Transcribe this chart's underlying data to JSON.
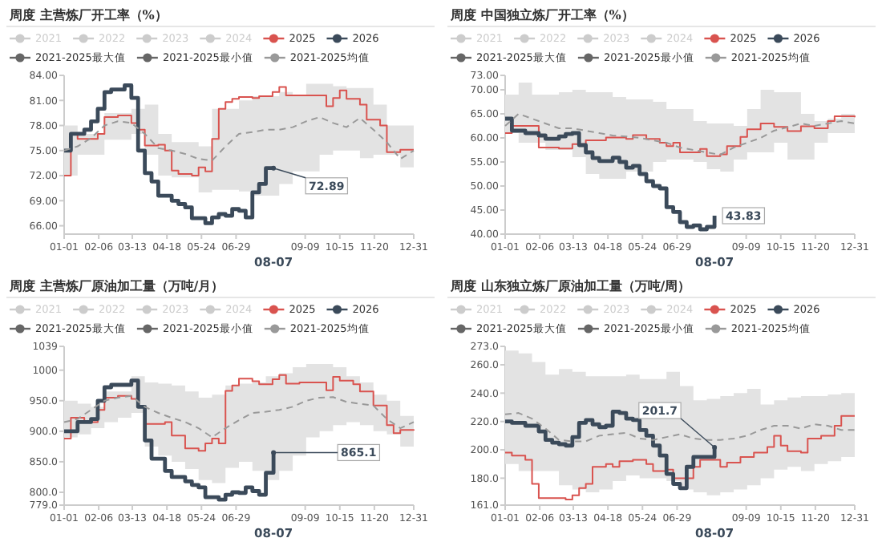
{
  "chart_data": [
    {
      "type": "step",
      "title": "周度 主营炼厂开工率（%）",
      "legend": "top",
      "xlim": [
        "--01-01",
        "--12-31"
      ],
      "ylim": [
        65,
        84
      ],
      "xticks": [
        {
          "value": "--01-01",
          "label": "01-01"
        },
        {
          "value": "--02-06",
          "label": "02-06"
        },
        {
          "value": "--03-13",
          "label": "03-13"
        },
        {
          "value": "--04-18",
          "label": "04-18"
        },
        {
          "value": "--05-24",
          "label": "05-24"
        },
        {
          "value": "--06-29",
          "label": "06-29"
        },
        {
          "value": "--09-09",
          "label": "09-09"
        },
        {
          "value": "--10-15",
          "label": "10-15"
        },
        {
          "value": "--11-20",
          "label": "11-20"
        },
        {
          "value": "--12-31",
          "label": "12-31"
        }
      ],
      "yticks": [
        {
          "value": 66,
          "label": "66.00"
        },
        {
          "value": 69,
          "label": "69.00"
        },
        {
          "value": 72,
          "label": "72.00"
        },
        {
          "value": 75,
          "label": "75.00"
        },
        {
          "value": 78,
          "label": "78.00"
        },
        {
          "value": 81,
          "label": "81.00"
        },
        {
          "value": 84,
          "label": "84.00"
        }
      ],
      "annotations": [
        {
          "text": "72.89",
          "x": "--08-07",
          "y": 72.89
        },
        "08-07"
      ],
      "series": [
        {
          "name": "2021",
          "color": "#cccccc"
        },
        {
          "name": "2022",
          "color": "#cccccc"
        },
        {
          "name": "2023",
          "color": "#cccccc"
        },
        {
          "name": "2024",
          "color": "#cccccc"
        },
        {
          "name": "2025",
          "color": "#d9534f",
          "x": [
            "--01-01",
            "--01-08",
            "--01-15",
            "--02-05",
            "--02-12",
            "--02-26",
            "--03-05",
            "--03-12",
            "--03-19",
            "--03-26",
            "--04-09",
            "--04-16",
            "--04-23",
            "--04-30",
            "--05-14",
            "--05-21",
            "--05-28",
            "--06-04",
            "--06-11",
            "--06-18",
            "--06-25",
            "--07-02",
            "--07-16",
            "--07-23",
            "--08-06",
            "--08-13",
            "--08-20",
            "--09-03",
            "--09-24",
            "--10-01",
            "--10-08",
            "--10-15",
            "--10-22",
            "--11-05",
            "--11-12",
            "--11-26",
            "--12-03",
            "--12-17",
            "--12-31"
          ],
          "values": [
            72,
            77,
            76.4,
            77,
            79,
            79.2,
            79.2,
            78.3,
            77.5,
            75.6,
            75.7,
            75,
            72.6,
            72.2,
            72,
            73,
            72.5,
            76.4,
            80,
            80.8,
            81.2,
            81.4,
            81.3,
            81.5,
            82,
            82.6,
            81.6,
            81.6,
            81.6,
            80.3,
            81.3,
            82.2,
            81.2,
            80.5,
            78.7,
            78,
            74.8,
            75.1,
            75.1
          ]
        },
        {
          "name": "2026",
          "color": "#3b4a5a",
          "x": [
            "--01-01",
            "--01-08",
            "--01-22",
            "--01-29",
            "--02-05",
            "--02-12",
            "--02-19",
            "--03-05",
            "--03-12",
            "--03-19",
            "--03-26",
            "--04-02",
            "--04-09",
            "--04-23",
            "--04-30",
            "--05-07",
            "--05-14",
            "--05-28",
            "--06-04",
            "--06-11",
            "--06-18",
            "--06-25",
            "--07-02",
            "--07-09",
            "--07-16",
            "--07-23",
            "--07-30",
            "--08-07"
          ],
          "values": [
            75,
            77,
            77.5,
            78.5,
            80,
            82,
            82.3,
            82.8,
            81.3,
            75,
            72.3,
            71.3,
            69.6,
            69,
            68.6,
            68.2,
            66.9,
            66.3,
            67,
            67.4,
            67.2,
            68,
            67.8,
            67,
            70,
            71,
            72.9,
            72.89
          ]
        },
        {
          "name": "2021-2025最大值",
          "color": "#666666"
        },
        {
          "name": "2021-2025最小值",
          "color": "#666666"
        },
        {
          "name": "2021-2025均值",
          "type": "line",
          "line_style": "dashed",
          "color": "#999999",
          "x": [
            "--01-01",
            "--01-15",
            "--01-29",
            "--02-12",
            "--02-26",
            "--03-12",
            "--03-26",
            "--04-09",
            "--04-23",
            "--05-07",
            "--05-21",
            "--06-04",
            "--06-18",
            "--07-02",
            "--07-16",
            "--07-30",
            "--08-13",
            "--08-27",
            "--09-10",
            "--09-24",
            "--10-08",
            "--10-22",
            "--11-05",
            "--11-19",
            "--12-03",
            "--12-17",
            "--12-31"
          ],
          "values": [
            75,
            75.5,
            76.5,
            78,
            78.5,
            78.3,
            77,
            75.3,
            75,
            74.6,
            74,
            73.8,
            75.5,
            77,
            77.2,
            77.5,
            77.5,
            77.8,
            78.5,
            79,
            78.3,
            77.8,
            78.9,
            77.5,
            76,
            74,
            75
          ],
          "upper": [
            78,
            77,
            77,
            79.5,
            79.5,
            80,
            80.5,
            77,
            76,
            76,
            75.5,
            80,
            80,
            81,
            81.5,
            81.5,
            82,
            81.5,
            83,
            83,
            82.7,
            82.5,
            82.5,
            80.5,
            78,
            78,
            78.2
          ],
          "lower": [
            72,
            74.5,
            74.5,
            76.3,
            76.3,
            77,
            74.5,
            72,
            71.8,
            71.8,
            70,
            70.3,
            70.3,
            70.1,
            69.6,
            69.6,
            71,
            72.5,
            72.5,
            74.5,
            75,
            75,
            74.1,
            74.5,
            74.5,
            73,
            72
          ]
        }
      ]
    },
    {
      "type": "step",
      "title": "周度 中国独立炼厂开工率（%）",
      "legend": "top",
      "xlim": [
        "--01-01",
        "--12-31"
      ],
      "ylim": [
        40,
        73
      ],
      "xticks": [
        {
          "value": "--01-01",
          "label": "01-01"
        },
        {
          "value": "--02-06",
          "label": "02-06"
        },
        {
          "value": "--03-13",
          "label": "03-13"
        },
        {
          "value": "--04-18",
          "label": "04-18"
        },
        {
          "value": "--05-24",
          "label": "05-24"
        },
        {
          "value": "--06-29",
          "label": "06-29"
        },
        {
          "value": "--09-09",
          "label": "09-09"
        },
        {
          "value": "--10-15",
          "label": "10-15"
        },
        {
          "value": "--11-20",
          "label": "11-20"
        },
        {
          "value": "--12-31",
          "label": "12-31"
        }
      ],
      "yticks": [
        {
          "value": 40,
          "label": "40.00"
        },
        {
          "value": 45,
          "label": "45.00"
        },
        {
          "value": 50,
          "label": "50.00"
        },
        {
          "value": 55,
          "label": "55.00"
        },
        {
          "value": 60,
          "label": "60.00"
        },
        {
          "value": 65,
          "label": "65.00"
        },
        {
          "value": 70,
          "label": "70.00"
        },
        {
          "value": 73,
          "label": "73.00"
        }
      ],
      "annotations": [
        {
          "text": "43.83",
          "x": "--08-07",
          "y": 43.83
        },
        "08-07"
      ],
      "series": [
        {
          "name": "2021",
          "color": "#cccccc"
        },
        {
          "name": "2022",
          "color": "#cccccc"
        },
        {
          "name": "2023",
          "color": "#cccccc"
        },
        {
          "name": "2024",
          "color": "#cccccc"
        },
        {
          "name": "2025",
          "color": "#d9534f",
          "x": [
            "--01-01",
            "--01-08",
            "--01-29",
            "--02-05",
            "--02-26",
            "--03-12",
            "--03-26",
            "--04-16",
            "--05-07",
            "--05-14",
            "--05-28",
            "--06-11",
            "--06-18",
            "--06-25",
            "--07-02",
            "--07-23",
            "--07-30",
            "--08-13",
            "--08-20",
            "--09-03",
            "--09-10",
            "--09-24",
            "--10-08",
            "--10-22",
            "--11-05",
            "--11-19",
            "--12-03",
            "--12-10",
            "--12-31"
          ],
          "values": [
            61,
            62.5,
            62.5,
            58,
            57.8,
            58.7,
            59.5,
            60.1,
            59.8,
            60.6,
            59.8,
            59,
            58.3,
            59,
            57,
            57.7,
            56.2,
            56.6,
            58.3,
            60.2,
            61.8,
            63,
            62.3,
            61.4,
            62.4,
            62,
            63.5,
            64.5,
            64.3
          ]
        },
        {
          "name": "2026",
          "color": "#3b4a5a",
          "x": [
            "--01-01",
            "--01-08",
            "--01-22",
            "--02-05",
            "--02-12",
            "--02-26",
            "--03-05",
            "--03-12",
            "--03-19",
            "--03-26",
            "--04-02",
            "--04-09",
            "--04-16",
            "--04-23",
            "--04-30",
            "--05-07",
            "--05-14",
            "--05-21",
            "--05-28",
            "--06-04",
            "--06-11",
            "--06-18",
            "--06-25",
            "--07-02",
            "--07-09",
            "--07-16",
            "--07-23",
            "--07-30",
            "--08-07"
          ],
          "values": [
            64,
            61.5,
            61,
            60.5,
            59.8,
            60.3,
            60.8,
            61,
            58.5,
            57,
            55.8,
            55.2,
            55.2,
            55.9,
            55,
            53.8,
            54.2,
            52.5,
            51,
            50,
            49.5,
            45.6,
            44.6,
            42.5,
            41.5,
            41.8,
            41,
            41.5,
            43.83
          ]
        },
        {
          "name": "2021-2025最大值",
          "color": "#666666"
        },
        {
          "name": "2021-2025最小值",
          "color": "#666666"
        },
        {
          "name": "2021-2025均值",
          "type": "line",
          "line_style": "dashed",
          "color": "#999999",
          "x": [
            "--01-01",
            "--01-15",
            "--01-29",
            "--02-12",
            "--02-26",
            "--03-12",
            "--03-26",
            "--04-09",
            "--04-23",
            "--05-07",
            "--05-21",
            "--06-04",
            "--06-18",
            "--07-02",
            "--07-16",
            "--07-30",
            "--08-13",
            "--08-27",
            "--09-10",
            "--09-24",
            "--10-08",
            "--10-22",
            "--11-05",
            "--11-19",
            "--12-03",
            "--12-17",
            "--12-31"
          ],
          "values": [
            62.5,
            65,
            64,
            63,
            62,
            62,
            61.5,
            61,
            60.5,
            60.3,
            60,
            59.5,
            59,
            58,
            57.5,
            57,
            56.5,
            58,
            59,
            60,
            61.5,
            62.2,
            63,
            62.5,
            63,
            63.5,
            63
          ],
          "upper": [
            69,
            71.5,
            69,
            69,
            69.5,
            70,
            69.5,
            69.5,
            68.5,
            68,
            68,
            67.5,
            66,
            66,
            63.5,
            63,
            63,
            62.5,
            66,
            70,
            69.5,
            69.5,
            65,
            63.5,
            64,
            65,
            64.5
          ],
          "lower": [
            61,
            59,
            59,
            57.5,
            57.5,
            56,
            52.5,
            51.5,
            51.5,
            53,
            53,
            55,
            55.5,
            55.5,
            55,
            53.5,
            53,
            55.5,
            57,
            57,
            59,
            55.5,
            55.5,
            59,
            61,
            61,
            60.5
          ]
        }
      ]
    },
    {
      "type": "step",
      "title": "周度 主营炼厂原油加工量（万吨/月）",
      "legend": "top",
      "xlim": [
        "--01-01",
        "--12-31"
      ],
      "ylim": [
        779,
        1039
      ],
      "xticks": [
        {
          "value": "--01-01",
          "label": "01-01"
        },
        {
          "value": "--02-06",
          "label": "02-06"
        },
        {
          "value": "--03-13",
          "label": "03-13"
        },
        {
          "value": "--04-18",
          "label": "04-18"
        },
        {
          "value": "--05-24",
          "label": "05-24"
        },
        {
          "value": "--06-29",
          "label": "06-29"
        },
        {
          "value": "--09-09",
          "label": "09-09"
        },
        {
          "value": "--10-15",
          "label": "10-15"
        },
        {
          "value": "--11-20",
          "label": "11-20"
        },
        {
          "value": "--12-31",
          "label": "12-31"
        }
      ],
      "yticks": [
        {
          "value": 779,
          "label": "779.0"
        },
        {
          "value": 800,
          "label": "800.0"
        },
        {
          "value": 850,
          "label": "850.0"
        },
        {
          "value": 900,
          "label": "900.0"
        },
        {
          "value": 950,
          "label": "950.0"
        },
        1000,
        1039
      ],
      "annotations": [
        {
          "text": "865.1",
          "x": "--08-07",
          "y": 865.1
        },
        "08-07"
      ],
      "series": [
        {
          "name": "2021",
          "color": "#cccccc"
        },
        {
          "name": "2022",
          "color": "#cccccc"
        },
        {
          "name": "2023",
          "color": "#cccccc"
        },
        {
          "name": "2024",
          "color": "#cccccc"
        },
        {
          "name": "2025",
          "color": "#d9534f",
          "x": [
            "--01-01",
            "--01-08",
            "--01-22",
            "--02-05",
            "--02-12",
            "--02-26",
            "--03-12",
            "--03-19",
            "--03-26",
            "--04-16",
            "--04-23",
            "--05-07",
            "--05-21",
            "--05-28",
            "--06-04",
            "--06-11",
            "--06-18",
            "--06-25",
            "--07-02",
            "--07-16",
            "--07-23",
            "--08-06",
            "--08-13",
            "--08-20",
            "--09-03",
            "--09-24",
            "--10-01",
            "--10-08",
            "--10-15",
            "--10-29",
            "--11-05",
            "--11-19",
            "--12-03",
            "--12-10",
            "--12-17",
            "--12-31"
          ],
          "values": [
            888,
            922,
            915,
            935,
            955,
            958,
            953,
            940,
            912,
            915,
            893,
            872,
            868,
            880,
            888,
            880,
            966,
            975,
            986,
            982,
            977,
            985,
            992,
            978,
            980,
            980,
            967,
            989,
            983,
            977,
            965,
            942,
            910,
            897,
            902,
            901
          ]
        },
        {
          "name": "2026",
          "color": "#3b4a5a",
          "x": [
            "--01-01",
            "--01-15",
            "--01-29",
            "--02-05",
            "--02-12",
            "--02-19",
            "--03-05",
            "--03-12",
            "--03-19",
            "--03-26",
            "--04-02",
            "--04-16",
            "--04-23",
            "--05-07",
            "--05-14",
            "--05-21",
            "--05-28",
            "--06-11",
            "--06-18",
            "--06-25",
            "--07-02",
            "--07-09",
            "--07-16",
            "--07-23",
            "--07-30",
            "--08-07"
          ],
          "values": [
            900,
            915,
            920,
            950,
            972,
            976,
            976,
            983,
            940,
            885,
            855,
            835,
            825,
            818,
            812,
            808,
            792,
            788,
            796,
            800,
            799,
            808,
            802,
            796,
            832,
            865.1
          ]
        },
        {
          "name": "2021-2025最大值",
          "color": "#666666"
        },
        {
          "name": "2021-2025最小值",
          "color": "#666666"
        },
        {
          "name": "2021-2025均值",
          "type": "line",
          "line_style": "dashed",
          "color": "#999999",
          "x": [
            "--01-01",
            "--01-15",
            "--01-29",
            "--02-12",
            "--02-26",
            "--03-12",
            "--03-26",
            "--04-09",
            "--04-23",
            "--05-07",
            "--05-21",
            "--06-04",
            "--06-18",
            "--07-02",
            "--07-16",
            "--07-30",
            "--08-13",
            "--08-27",
            "--09-10",
            "--09-24",
            "--10-08",
            "--10-22",
            "--11-05",
            "--11-19",
            "--12-03",
            "--12-17",
            "--12-31"
          ],
          "values": [
            915,
            920,
            935,
            950,
            955,
            958,
            940,
            930,
            922,
            915,
            905,
            890,
            905,
            918,
            930,
            932,
            935,
            940,
            950,
            955,
            956,
            948,
            945,
            942,
            920,
            905,
            915
          ],
          "upper": [
            950,
            945,
            940,
            965,
            965,
            990,
            980,
            978,
            975,
            965,
            955,
            960,
            975,
            978,
            980,
            990,
            995,
            1005,
            1010,
            1010,
            1005,
            990,
            980,
            960,
            950,
            925,
            945
          ],
          "lower": [
            890,
            895,
            905,
            915,
            922,
            930,
            875,
            860,
            850,
            838,
            820,
            815,
            840,
            850,
            835,
            820,
            835,
            860,
            890,
            900,
            910,
            915,
            910,
            900,
            895,
            875,
            885
          ]
        }
      ]
    },
    {
      "type": "step",
      "title": "周度 山东独立炼厂原油加工量（万吨/周）",
      "legend": "top",
      "xlim": [
        "--01-01",
        "--12-31"
      ],
      "ylim": [
        161,
        273
      ],
      "xticks": [
        {
          "value": "--01-01",
          "label": "01-01"
        },
        {
          "value": "--02-06",
          "label": "02-06"
        },
        {
          "value": "--03-13",
          "label": "03-13"
        },
        {
          "value": "--04-18",
          "label": "04-18"
        },
        {
          "value": "--05-24",
          "label": "05-24"
        },
        {
          "value": "--06-29",
          "label": "06-29"
        },
        {
          "value": "--09-09",
          "label": "09-09"
        },
        {
          "value": "--10-15",
          "label": "10-15"
        },
        {
          "value": "--11-20",
          "label": "11-20"
        },
        {
          "value": "--12-31",
          "label": "12-31"
        }
      ],
      "yticks": [
        {
          "value": 161,
          "label": "161.0"
        },
        {
          "value": 180,
          "label": "180.0"
        },
        {
          "value": 200,
          "label": "200.0"
        },
        {
          "value": 220,
          "label": "220.0"
        },
        {
          "value": 240,
          "label": "240.0"
        },
        {
          "value": 260,
          "label": "260.0"
        },
        {
          "value": 273,
          "label": "273.0"
        }
      ],
      "annotations": [
        {
          "text": "201.7",
          "x": "--08-07",
          "y": 201.7
        },
        "08-07"
      ],
      "series": [
        {
          "name": "2021",
          "color": "#cccccc"
        },
        {
          "name": "2022",
          "color": "#cccccc"
        },
        {
          "name": "2023",
          "color": "#cccccc"
        },
        {
          "name": "2024",
          "color": "#cccccc"
        },
        {
          "name": "2025",
          "color": "#d9534f",
          "x": [
            "--01-01",
            "--01-08",
            "--01-22",
            "--01-29",
            "--02-05",
            "--02-19",
            "--03-05",
            "--03-12",
            "--03-19",
            "--03-26",
            "--04-02",
            "--04-16",
            "--04-23",
            "--04-30",
            "--05-14",
            "--05-28",
            "--06-04",
            "--06-18",
            "--06-25",
            "--07-16",
            "--07-23",
            "--08-13",
            "--08-20",
            "--09-03",
            "--09-17",
            "--10-01",
            "--10-08",
            "--10-15",
            "--10-22",
            "--11-05",
            "--11-12",
            "--11-26",
            "--12-10",
            "--12-17",
            "--12-31"
          ],
          "values": [
            198,
            196,
            193,
            176,
            166,
            166,
            165,
            168,
            173,
            176,
            188,
            190,
            188,
            192,
            193,
            190,
            185,
            186,
            180,
            188,
            193,
            188,
            191,
            195,
            198,
            202,
            210,
            203,
            199,
            198,
            208,
            210,
            217,
            224,
            224
          ]
        },
        {
          "name": "2026",
          "color": "#3b4a5a",
          "x": [
            "--01-01",
            "--01-08",
            "--01-22",
            "--02-05",
            "--02-12",
            "--02-19",
            "--02-26",
            "--03-05",
            "--03-12",
            "--03-19",
            "--03-26",
            "--04-02",
            "--04-09",
            "--04-16",
            "--04-23",
            "--04-30",
            "--05-07",
            "--05-14",
            "--05-21",
            "--05-28",
            "--06-04",
            "--06-11",
            "--06-18",
            "--06-25",
            "--07-02",
            "--07-09",
            "--07-16",
            "--07-30",
            "--08-07"
          ],
          "values": [
            220,
            219,
            217,
            213,
            207,
            205,
            204,
            203,
            209,
            219,
            221,
            218,
            216,
            217,
            227,
            226,
            222,
            221,
            214,
            210,
            203,
            196,
            183,
            176,
            173,
            188,
            195,
            195,
            201.7
          ]
        },
        {
          "name": "2021-2025最大值",
          "color": "#666666"
        },
        {
          "name": "2021-2025最小值",
          "color": "#666666"
        },
        {
          "name": "2021-2025均值",
          "type": "line",
          "line_style": "dashed",
          "color": "#999999",
          "x": [
            "--01-01",
            "--01-15",
            "--01-29",
            "--02-12",
            "--02-26",
            "--03-12",
            "--03-26",
            "--04-09",
            "--04-23",
            "--05-07",
            "--05-21",
            "--06-04",
            "--06-18",
            "--07-02",
            "--07-16",
            "--07-30",
            "--08-13",
            "--08-27",
            "--09-10",
            "--09-24",
            "--10-08",
            "--10-22",
            "--11-05",
            "--11-19",
            "--12-03",
            "--12-17",
            "--12-31"
          ],
          "values": [
            225,
            226,
            222,
            215,
            207,
            206,
            206,
            210,
            211,
            212,
            208,
            207,
            209,
            211,
            208,
            207,
            207,
            208,
            210,
            214,
            217,
            217,
            215,
            218,
            217,
            214,
            214
          ],
          "upper": [
            270,
            268,
            262,
            253,
            257,
            255,
            252,
            252,
            252,
            253,
            250,
            250,
            255,
            245,
            235,
            236,
            238,
            240,
            243,
            232,
            235,
            237,
            238,
            238,
            239,
            240,
            228
          ],
          "lower": [
            190,
            185,
            185,
            185,
            175,
            172,
            170,
            172,
            178,
            182,
            180,
            180,
            178,
            172,
            170,
            168,
            170,
            172,
            175,
            180,
            186,
            188,
            185,
            190,
            192,
            195,
            198
          ]
        }
      ]
    }
  ]
}
